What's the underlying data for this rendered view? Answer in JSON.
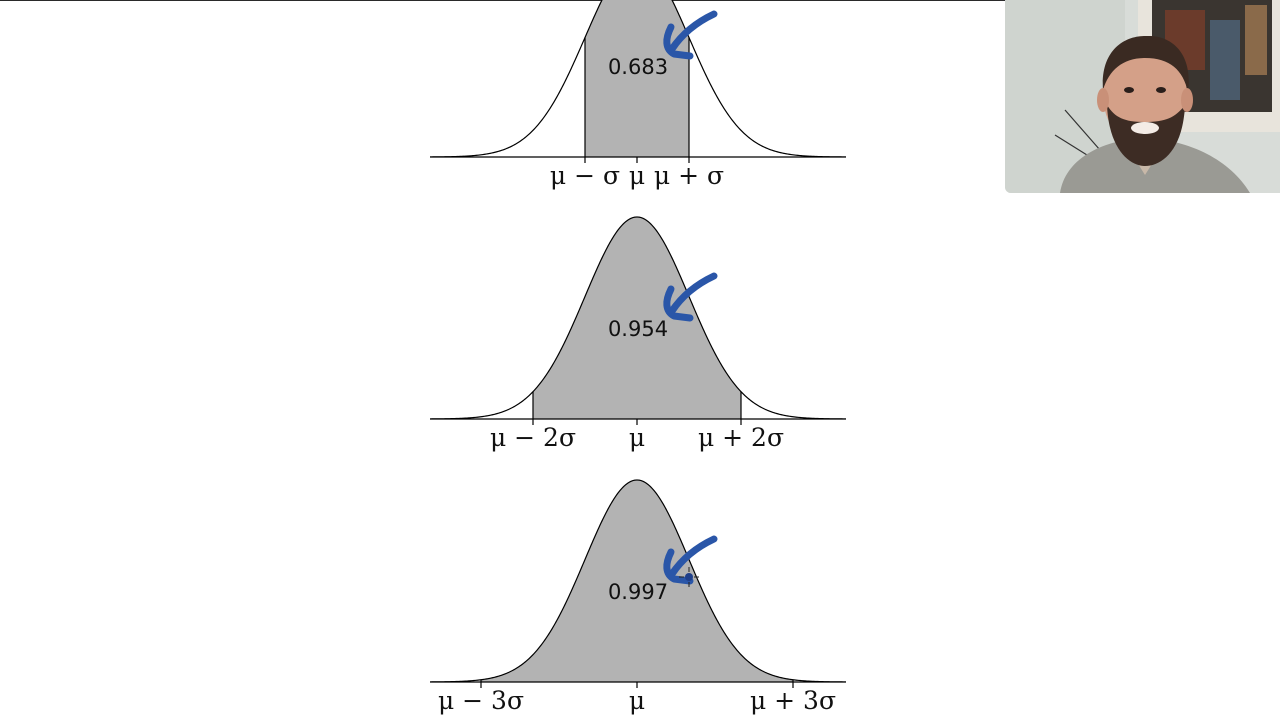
{
  "chart_data": [
    {
      "type": "area",
      "curve": "normal density",
      "shaded_between": [
        "μ − σ",
        "μ + σ"
      ],
      "shaded_sigma": 1,
      "area_label": "0.683",
      "tick_labels": [
        "μ − σ",
        "μ",
        "μ + σ"
      ],
      "annotation": "hand-drawn blue arrow pointing to shaded region"
    },
    {
      "type": "area",
      "curve": "normal density",
      "shaded_between": [
        "μ − 2σ",
        "μ + 2σ"
      ],
      "shaded_sigma": 2,
      "area_label": "0.954",
      "tick_labels": [
        "μ − 2σ",
        "μ",
        "μ + 2σ"
      ],
      "annotation": "hand-drawn blue arrow pointing to shaded region"
    },
    {
      "type": "area",
      "curve": "normal density",
      "shaded_between": [
        "μ − 3σ",
        "μ + 3σ"
      ],
      "shaded_sigma": 3,
      "area_label": "0.997",
      "tick_labels": [
        "μ − 3σ",
        "μ",
        "μ + 3σ"
      ],
      "annotation": "hand-drawn blue arrow pointing to shaded region"
    }
  ],
  "colors": {
    "shade": "#b3b3b3",
    "curve": "#000000",
    "annotation_ink": "#2a56a8"
  },
  "webcam": {
    "description": "presenter video overlay",
    "icon": "presenter-video"
  }
}
